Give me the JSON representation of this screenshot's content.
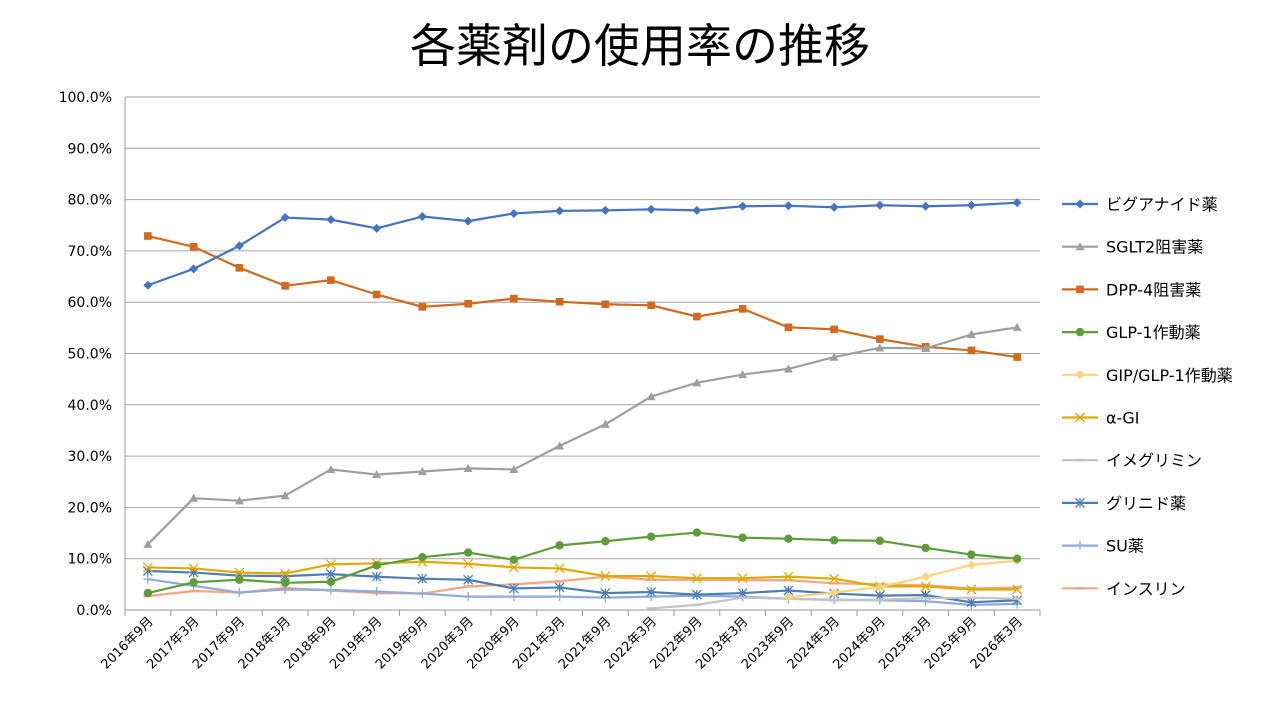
{
  "chart_data": {
    "type": "line",
    "title": "各薬剤の使用率の推移",
    "xlabel": "",
    "ylabel": "",
    "ylim": [
      0,
      100
    ],
    "yticks": [
      "0.0%",
      "10.0%",
      "20.0%",
      "30.0%",
      "40.0%",
      "50.0%",
      "60.0%",
      "70.0%",
      "80.0%",
      "90.0%",
      "100.0%"
    ],
    "grid": true,
    "legend_position": "right",
    "categories": [
      "2016年9月",
      "2017年3月",
      "2017年9月",
      "2018年3月",
      "2018年9月",
      "2019年3月",
      "2019年9月",
      "2020年3月",
      "2020年9月",
      "2021年3月",
      "2021年9月",
      "2022年3月",
      "2022年9月",
      "2023年3月",
      "2023年9月",
      "2024年3月",
      "2024年9月",
      "2025年3月",
      "2025年9月",
      "2026年3月"
    ],
    "series": [
      {
        "name": "ビグアナイド薬",
        "color": "#4472C4",
        "marker": "diamond",
        "values": [
          63.3,
          66.5,
          71.0,
          76.5,
          76.1,
          74.4,
          76.7,
          75.8,
          77.3,
          77.8,
          77.9,
          78.1,
          77.9,
          78.7,
          78.8,
          78.5,
          78.9,
          78.7,
          78.9,
          79.4
        ]
      },
      {
        "name": "SGLT2阻害薬",
        "color": "#9E9E9E",
        "marker": "triangle",
        "values": [
          12.8,
          21.8,
          21.3,
          22.3,
          27.4,
          26.4,
          27.0,
          27.6,
          27.4,
          32.0,
          36.2,
          41.6,
          44.3,
          45.9,
          47.0,
          49.3,
          51.1,
          51.0,
          53.7,
          55.1
        ]
      },
      {
        "name": "DPP-4阻害薬",
        "color": "#D2691E",
        "marker": "square",
        "values": [
          72.9,
          70.8,
          66.7,
          63.2,
          64.3,
          61.5,
          59.1,
          59.7,
          60.7,
          60.1,
          59.6,
          59.4,
          57.2,
          58.7,
          55.1,
          54.7,
          52.8,
          51.3,
          50.6,
          49.3
        ]
      },
      {
        "name": "GLP-1作動薬",
        "color": "#5E9C3A",
        "marker": "circle",
        "values": [
          3.3,
          5.4,
          5.9,
          5.3,
          5.5,
          8.7,
          10.3,
          11.2,
          9.8,
          12.6,
          13.4,
          14.3,
          15.1,
          14.1,
          13.9,
          13.6,
          13.5,
          12.1,
          10.8,
          10.0
        ]
      },
      {
        "name": "GIP/GLP-1作動薬",
        "color": "#FFD27F",
        "marker": "diamond",
        "values": [
          null,
          null,
          null,
          null,
          null,
          null,
          null,
          null,
          null,
          null,
          null,
          null,
          null,
          null,
          2.5,
          3.4,
          4.5,
          6.5,
          8.8,
          9.6
        ]
      },
      {
        "name": "α-GI",
        "color": "#E0A800",
        "marker": "x",
        "values": [
          8.3,
          8.1,
          7.3,
          7.1,
          8.9,
          9.1,
          9.4,
          9.0,
          8.3,
          8.1,
          6.6,
          6.6,
          6.2,
          6.2,
          6.5,
          6.1,
          4.6,
          4.6,
          4.0,
          4.0
        ]
      },
      {
        "name": "イメグリミン",
        "color": "#C4C4C4",
        "marker": "dash",
        "values": [
          null,
          null,
          null,
          null,
          null,
          null,
          null,
          null,
          null,
          null,
          null,
          0.3,
          1.0,
          2.4,
          2.2,
          1.9,
          2.0,
          2.3,
          2.4,
          2.2
        ]
      },
      {
        "name": "グリニド薬",
        "color": "#4A7EB5",
        "marker": "asterisk",
        "values": [
          7.6,
          7.3,
          6.7,
          6.6,
          7.0,
          6.5,
          6.1,
          5.9,
          4.2,
          4.4,
          3.3,
          3.5,
          3.0,
          3.3,
          3.8,
          3.2,
          2.8,
          2.9,
          1.5,
          1.9
        ]
      },
      {
        "name": "SU薬",
        "color": "#8FAADC",
        "marker": "plus",
        "values": [
          6.0,
          4.7,
          3.4,
          4.0,
          3.9,
          3.6,
          3.2,
          2.6,
          2.6,
          2.6,
          2.4,
          2.6,
          2.8,
          2.6,
          2.2,
          2.0,
          1.9,
          1.7,
          1.0,
          1.2
        ]
      },
      {
        "name": "インスリン",
        "color": "#F4A582",
        "marker": "dash",
        "values": [
          2.7,
          3.7,
          3.4,
          4.3,
          3.8,
          3.3,
          3.2,
          4.6,
          5.0,
          5.6,
          6.5,
          5.9,
          5.9,
          5.8,
          5.8,
          5.2,
          5.0,
          4.8,
          4.2,
          4.4
        ]
      }
    ]
  }
}
